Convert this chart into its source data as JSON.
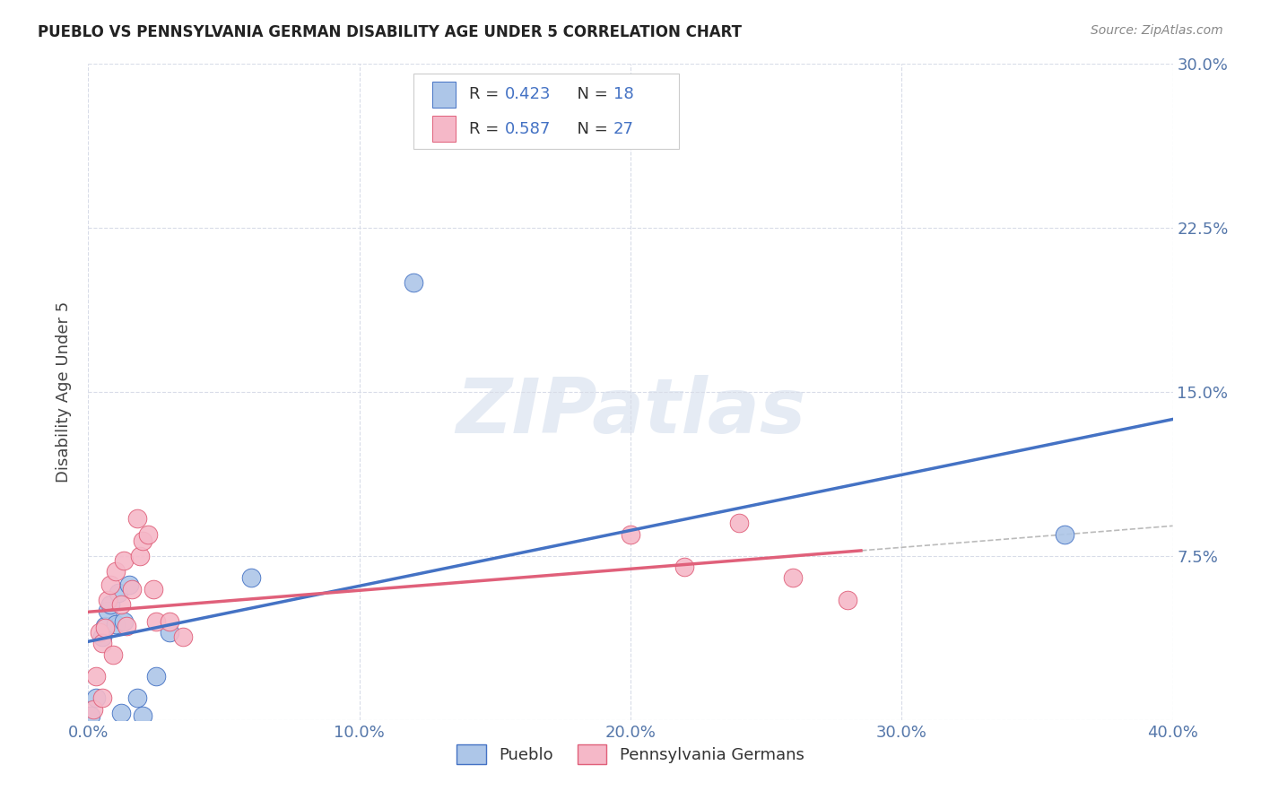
{
  "title": "PUEBLO VS PENNSYLVANIA GERMAN DISABILITY AGE UNDER 5 CORRELATION CHART",
  "source": "Source: ZipAtlas.com",
  "ylabel": "Disability Age Under 5",
  "watermark": "ZIPatlas",
  "xlim": [
    0.0,
    0.4
  ],
  "ylim": [
    0.0,
    0.3
  ],
  "xticks": [
    0.0,
    0.1,
    0.2,
    0.3,
    0.4
  ],
  "yticks": [
    0.0,
    0.075,
    0.15,
    0.225,
    0.3
  ],
  "xticklabels": [
    "0.0%",
    "10.0%",
    "20.0%",
    "30.0%",
    "40.0%"
  ],
  "yticklabels_right": [
    "",
    "7.5%",
    "15.0%",
    "22.5%",
    "30.0%"
  ],
  "pueblo_R": 0.423,
  "pueblo_N": 18,
  "penn_R": 0.587,
  "penn_N": 27,
  "pueblo_color": "#adc6e8",
  "penn_color": "#f5b8c8",
  "pueblo_line_color": "#4472c4",
  "penn_line_color": "#e0607a",
  "legend_label_pueblo": "Pueblo",
  "legend_label_penn": "Pennsylvania Germans",
  "pueblo_x": [
    0.001,
    0.003,
    0.005,
    0.006,
    0.007,
    0.008,
    0.01,
    0.011,
    0.012,
    0.013,
    0.015,
    0.018,
    0.02,
    0.025,
    0.03,
    0.06,
    0.12,
    0.36
  ],
  "pueblo_y": [
    0.002,
    0.01,
    0.038,
    0.043,
    0.05,
    0.053,
    0.044,
    0.058,
    0.003,
    0.045,
    0.062,
    0.01,
    0.002,
    0.02,
    0.04,
    0.065,
    0.2,
    0.085
  ],
  "penn_x": [
    0.002,
    0.003,
    0.004,
    0.005,
    0.005,
    0.006,
    0.007,
    0.008,
    0.009,
    0.01,
    0.012,
    0.013,
    0.014,
    0.016,
    0.018,
    0.019,
    0.02,
    0.022,
    0.024,
    0.025,
    0.03,
    0.035,
    0.2,
    0.22,
    0.24,
    0.26,
    0.28
  ],
  "penn_y": [
    0.005,
    0.02,
    0.04,
    0.01,
    0.035,
    0.042,
    0.055,
    0.062,
    0.03,
    0.068,
    0.053,
    0.073,
    0.043,
    0.06,
    0.092,
    0.075,
    0.082,
    0.085,
    0.06,
    0.045,
    0.045,
    0.038,
    0.085,
    0.07,
    0.09,
    0.065,
    0.055
  ],
  "background_color": "#ffffff",
  "grid_color": "#d8dce8"
}
